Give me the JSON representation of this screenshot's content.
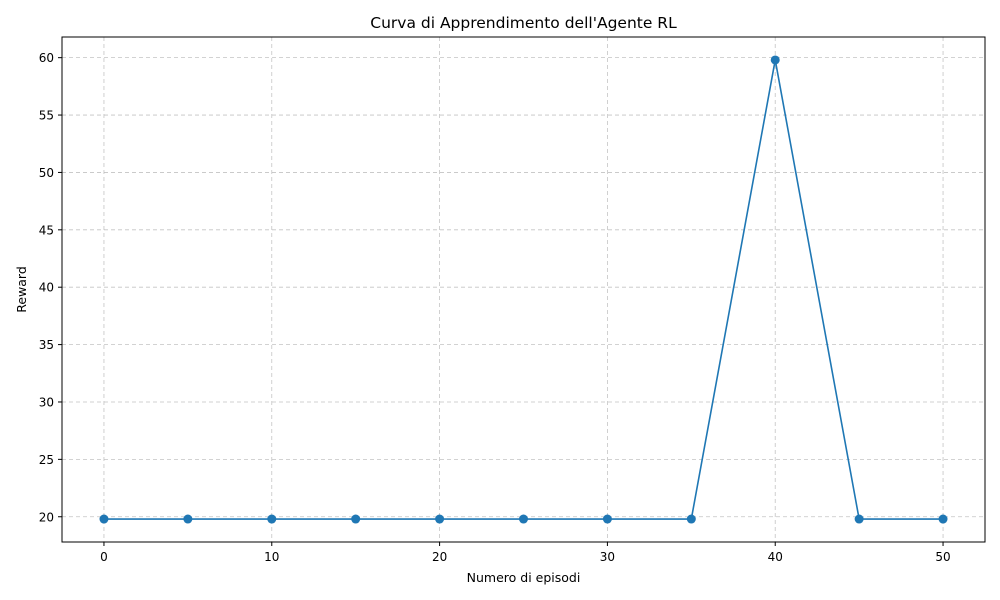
{
  "chart_data": {
    "type": "line",
    "title": "Curva di Apprendimento dell'Agente RL",
    "xlabel": "Numero di episodi",
    "ylabel": "Reward",
    "x": [
      0,
      5,
      10,
      15,
      20,
      25,
      30,
      35,
      40,
      45,
      50
    ],
    "series": [
      {
        "values": [
          19.8,
          19.8,
          19.8,
          19.8,
          19.8,
          19.8,
          19.8,
          19.8,
          59.8,
          19.8,
          19.8
        ],
        "color": "#1f77b4",
        "marker": "circle"
      }
    ],
    "xlim": [
      -2.5,
      52.5
    ],
    "ylim": [
      17.8,
      61.8
    ],
    "xticks": [
      0,
      10,
      20,
      30,
      40,
      50
    ],
    "yticks": [
      20,
      25,
      30,
      35,
      40,
      45,
      50,
      55,
      60
    ],
    "grid": true,
    "grid_style": "dashed"
  }
}
